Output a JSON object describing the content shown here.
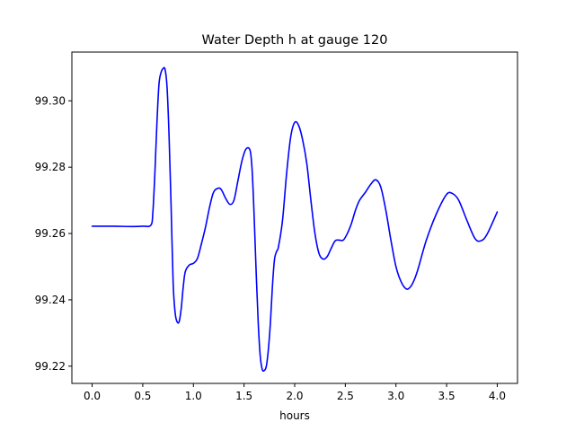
{
  "chart_data": {
    "type": "line",
    "title": "Water Depth h at gauge 120",
    "xlabel": "hours",
    "ylabel": "",
    "xlim": [
      -0.2,
      4.2
    ],
    "ylim": [
      99.2148,
      99.3147
    ],
    "xticks": [
      0.0,
      0.5,
      1.0,
      1.5,
      2.0,
      2.5,
      3.0,
      3.5,
      4.0
    ],
    "xtick_labels": [
      "0.0",
      "0.5",
      "1.0",
      "1.5",
      "2.0",
      "2.5",
      "3.0",
      "3.5",
      "4.0"
    ],
    "yticks": [
      99.22,
      99.24,
      99.26,
      99.28,
      99.3
    ],
    "ytick_labels": [
      "99.22",
      "99.24",
      "99.26",
      "99.28",
      "99.30"
    ],
    "grid": false,
    "series": [
      {
        "color": "#0000ff",
        "x": [
          0.0,
          0.2,
          0.4,
          0.5,
          0.58,
          0.6,
          0.62,
          0.64,
          0.66,
          0.68,
          0.7,
          0.72,
          0.74,
          0.76,
          0.78,
          0.8,
          0.82,
          0.84,
          0.86,
          0.88,
          0.9,
          0.92,
          0.96,
          1.0,
          1.04,
          1.08,
          1.12,
          1.16,
          1.2,
          1.25,
          1.28,
          1.32,
          1.36,
          1.4,
          1.44,
          1.48,
          1.52,
          1.56,
          1.58,
          1.6,
          1.62,
          1.64,
          1.66,
          1.68,
          1.7,
          1.72,
          1.74,
          1.76,
          1.78,
          1.8,
          1.82,
          1.84,
          1.88,
          1.92,
          1.96,
          2.0,
          2.04,
          2.08,
          2.12,
          2.16,
          2.2,
          2.24,
          2.28,
          2.32,
          2.36,
          2.4,
          2.44,
          2.48,
          2.52,
          2.56,
          2.6,
          2.64,
          2.7,
          2.75,
          2.8,
          2.85,
          2.9,
          2.95,
          3.0,
          3.05,
          3.1,
          3.14,
          3.18,
          3.22,
          3.3,
          3.4,
          3.5,
          3.56,
          3.62,
          3.7,
          3.78,
          3.84,
          3.9,
          4.0
        ],
        "y": [
          99.2622,
          99.2622,
          99.2621,
          99.2622,
          99.2625,
          99.2665,
          99.2785,
          99.2935,
          99.305,
          99.3085,
          99.3097,
          99.3095,
          99.304,
          99.289,
          99.268,
          99.245,
          99.236,
          99.2333,
          99.2335,
          99.2375,
          99.244,
          99.2485,
          99.2505,
          99.251,
          99.2525,
          99.257,
          99.262,
          99.268,
          99.2725,
          99.2737,
          99.273,
          99.2705,
          99.2688,
          99.27,
          99.276,
          99.282,
          99.2855,
          99.285,
          99.279,
          99.265,
          99.248,
          99.233,
          99.223,
          99.219,
          99.2187,
          99.22,
          99.225,
          99.233,
          99.244,
          99.252,
          99.2545,
          99.256,
          99.264,
          99.278,
          99.289,
          99.2935,
          99.2925,
          99.288,
          99.281,
          99.27,
          99.26,
          99.254,
          99.2523,
          99.253,
          99.2555,
          99.2578,
          99.258,
          99.258,
          99.26,
          99.263,
          99.267,
          99.27,
          99.2725,
          99.2748,
          99.2762,
          99.274,
          99.267,
          99.258,
          99.25,
          99.2455,
          99.2433,
          99.2438,
          99.246,
          99.2495,
          99.258,
          99.266,
          99.2718,
          99.272,
          99.27,
          99.264,
          99.2585,
          99.2578,
          99.2598,
          99.2665
        ]
      }
    ]
  }
}
